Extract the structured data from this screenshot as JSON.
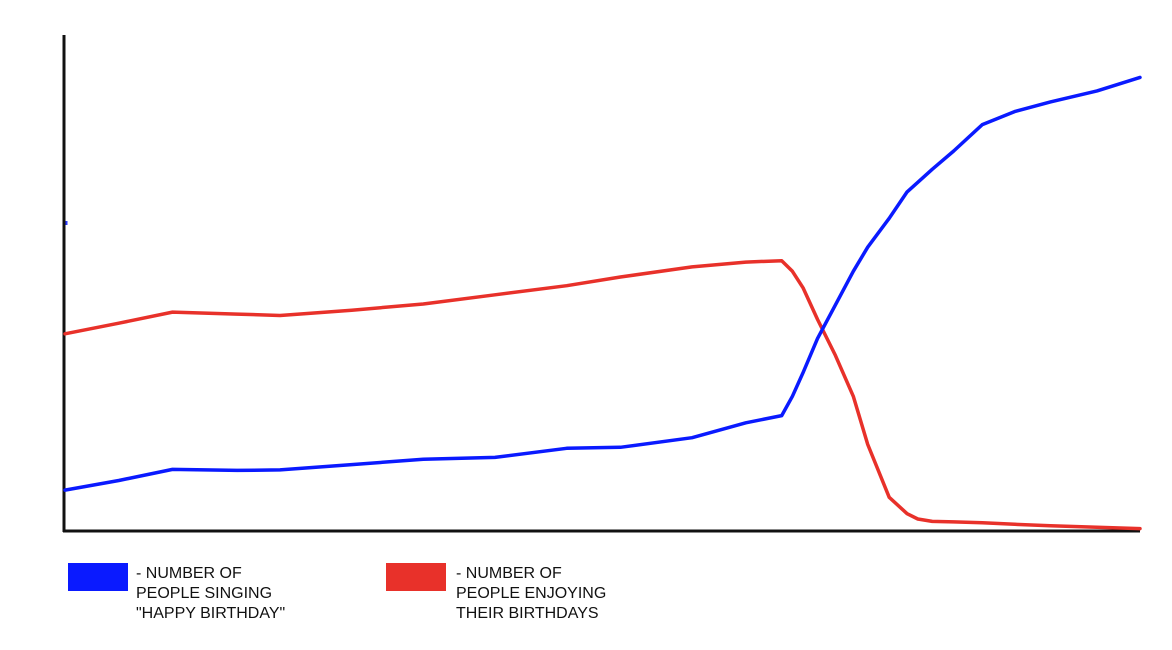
{
  "chart_data": {
    "type": "line",
    "title": "",
    "xlabel": "",
    "ylabel": "",
    "x": [
      0,
      1.5,
      3,
      4.8,
      6,
      8,
      10,
      12,
      14,
      15.5,
      17.5,
      19,
      20,
      20.3,
      20.6,
      21,
      21.5,
      22,
      22.4,
      23,
      23.5,
      23.8,
      24.2,
      24.8,
      25.6,
      26.5,
      27.5,
      28.8,
      30
    ],
    "xlim": [
      0,
      30
    ],
    "ylim": [
      0,
      100
    ],
    "axes": {
      "x_ticks": false,
      "y_ticks": false,
      "grid": false
    },
    "series": [
      {
        "name": "- NUMBER OF PEOPLE SINGING \"HAPPY BIRTHDAY\"",
        "color": "#0a1aff",
        "values": [
          8.5,
          10.5,
          12.8,
          12.6,
          12.7,
          13.8,
          14.9,
          15.3,
          17.2,
          17.4,
          19.4,
          22.5,
          24.0,
          28.0,
          33.0,
          40.0,
          47.0,
          54.0,
          59.0,
          65.0,
          70.5,
          72.5,
          75.2,
          79.0,
          84.5,
          87.2,
          89.2,
          91.5,
          94.3
        ]
      },
      {
        "name": "- NUMBER OF PEOPLE ENJOYING THEIR BIRTHDAYS",
        "color": "#e8312a",
        "values": [
          41.0,
          43.2,
          45.5,
          45.1,
          44.8,
          45.9,
          47.2,
          49.1,
          51.0,
          52.8,
          54.9,
          55.9,
          56.2,
          54.0,
          50.5,
          44.0,
          36.5,
          28.0,
          18.0,
          7.0,
          3.6,
          2.5,
          2.0,
          1.9,
          1.7,
          1.4,
          1.1,
          0.8,
          0.5
        ]
      }
    ],
    "legend": {
      "position": "bottom-left",
      "items": [
        {
          "series": 0,
          "text": "- NUMBER OF\nPEOPLE SINGING\n\"HAPPY BIRTHDAY\""
        },
        {
          "series": 1,
          "text": "- NUMBER OF\nPEOPLE ENJOYING\nTHEIR BIRTHDAYS"
        }
      ]
    }
  }
}
